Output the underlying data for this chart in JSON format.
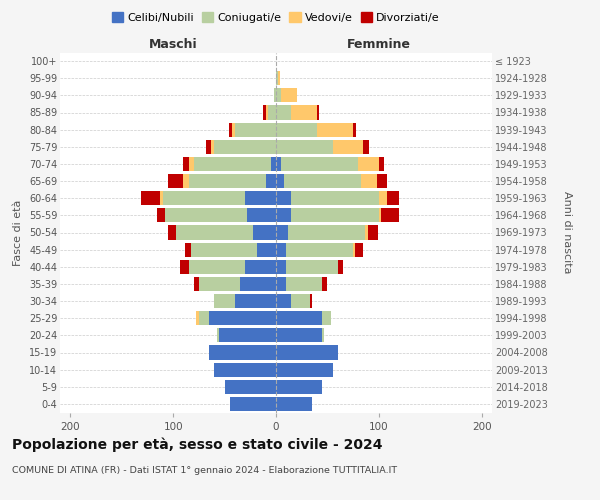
{
  "age_groups": [
    "0-4",
    "5-9",
    "10-14",
    "15-19",
    "20-24",
    "25-29",
    "30-34",
    "35-39",
    "40-44",
    "45-49",
    "50-54",
    "55-59",
    "60-64",
    "65-69",
    "70-74",
    "75-79",
    "80-84",
    "85-89",
    "90-94",
    "95-99",
    "100+"
  ],
  "birth_years": [
    "2019-2023",
    "2014-2018",
    "2009-2013",
    "2004-2008",
    "1999-2003",
    "1994-1998",
    "1989-1993",
    "1984-1988",
    "1979-1983",
    "1974-1978",
    "1969-1973",
    "1964-1968",
    "1959-1963",
    "1954-1958",
    "1949-1953",
    "1944-1948",
    "1939-1943",
    "1934-1938",
    "1929-1933",
    "1924-1928",
    "≤ 1923"
  ],
  "maschi": {
    "celibi": [
      45,
      50,
      60,
      65,
      55,
      65,
      40,
      35,
      30,
      18,
      22,
      28,
      30,
      10,
      5,
      0,
      0,
      0,
      0,
      0,
      0
    ],
    "coniugati": [
      0,
      0,
      0,
      0,
      2,
      10,
      20,
      40,
      55,
      65,
      75,
      80,
      80,
      75,
      75,
      60,
      40,
      8,
      2,
      0,
      0
    ],
    "vedovi": [
      0,
      0,
      0,
      0,
      0,
      3,
      0,
      0,
      0,
      0,
      0,
      0,
      3,
      5,
      5,
      3,
      3,
      2,
      0,
      0,
      0
    ],
    "divorziati": [
      0,
      0,
      0,
      0,
      0,
      0,
      0,
      5,
      8,
      5,
      8,
      8,
      18,
      15,
      5,
      5,
      3,
      3,
      0,
      0,
      0
    ]
  },
  "femmine": {
    "nubili": [
      35,
      45,
      55,
      60,
      45,
      45,
      15,
      10,
      10,
      10,
      12,
      15,
      15,
      8,
      5,
      0,
      0,
      0,
      0,
      0,
      0
    ],
    "coniugate": [
      0,
      0,
      0,
      0,
      2,
      8,
      18,
      35,
      50,
      65,
      75,
      85,
      85,
      75,
      75,
      55,
      40,
      15,
      5,
      2,
      0
    ],
    "vedove": [
      0,
      0,
      0,
      0,
      0,
      0,
      0,
      0,
      0,
      2,
      2,
      2,
      8,
      15,
      20,
      30,
      35,
      25,
      15,
      2,
      0
    ],
    "divorziate": [
      0,
      0,
      0,
      0,
      0,
      0,
      2,
      5,
      5,
      8,
      10,
      18,
      12,
      10,
      5,
      5,
      3,
      2,
      0,
      0,
      0
    ]
  },
  "colors": {
    "celibi": "#4472c4",
    "coniugati": "#b8cfa0",
    "vedovi": "#ffc86b",
    "divorziati": "#c00000"
  },
  "title": "Popolazione per età, sesso e stato civile - 2024",
  "subtitle": "COMUNE DI ATINA (FR) - Dati ISTAT 1° gennaio 2024 - Elaborazione TUTTITALIA.IT",
  "ylabel_left": "Fasce di età",
  "ylabel_right": "Anni di nascita",
  "xlabel_left": "Maschi",
  "xlabel_right": "Femmine",
  "xlim": 210,
  "bg_color": "#f5f5f5",
  "plot_bg": "#ffffff"
}
